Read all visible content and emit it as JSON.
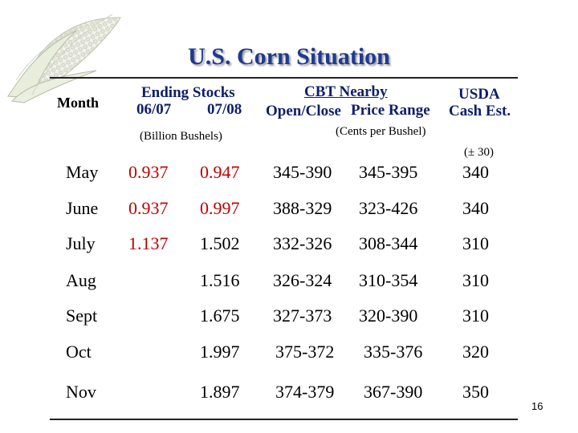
{
  "slide": {
    "title": "U.S. Corn Situation",
    "page_number": "16"
  },
  "headers": {
    "month": "Month",
    "ending_stocks": "Ending Stocks",
    "year_a": "06/07",
    "year_b": "07/08",
    "billion_bushels": "(Billion Bushels)",
    "cbt_nearby": "CBT Nearby",
    "open_close": "Open/Close",
    "price_range": "Price Range",
    "usda": "USDA",
    "cash_est": "Cash Est.",
    "cents_per_bushel": "(Cents per Bushel)",
    "plus_minus": "(± 30)"
  },
  "rows": [
    {
      "month": "May",
      "s0607": "0.937",
      "s0708": "0.947",
      "open_close": "345-390",
      "price_range": "345-395",
      "cash": "340"
    },
    {
      "month": "June",
      "s0607": "0.937",
      "s0708": "0.997",
      "open_close": "388-329",
      "price_range": "323-426",
      "cash": "340"
    },
    {
      "month": "July",
      "s0607": "1.137",
      "s0708": "1.502",
      "open_close": "332-326",
      "price_range": "308-344",
      "cash": "310"
    },
    {
      "month": "Aug",
      "s0607": "",
      "s0708": "1.516",
      "open_close": "326-324",
      "price_range": "310-354",
      "cash": "310"
    },
    {
      "month": "Sept",
      "s0607": "",
      "s0708": "1.675",
      "open_close": "327-373",
      "price_range": "320-390",
      "cash": "310"
    },
    {
      "month": "Oct",
      "s0607": "",
      "s0708": "1.997",
      "open_close": "375-372",
      "price_range": "335-376",
      "cash": "320"
    },
    {
      "month": "Nov",
      "s0607": "",
      "s0708": "1.897",
      "open_close": "374-379",
      "price_range": "367-390",
      "cash": "350"
    }
  ],
  "colors": {
    "title": "#1f3a8f",
    "header": "#0d1f6b",
    "highlight": "#c00000"
  },
  "icons": {
    "logo": "corn-cob-icon"
  }
}
